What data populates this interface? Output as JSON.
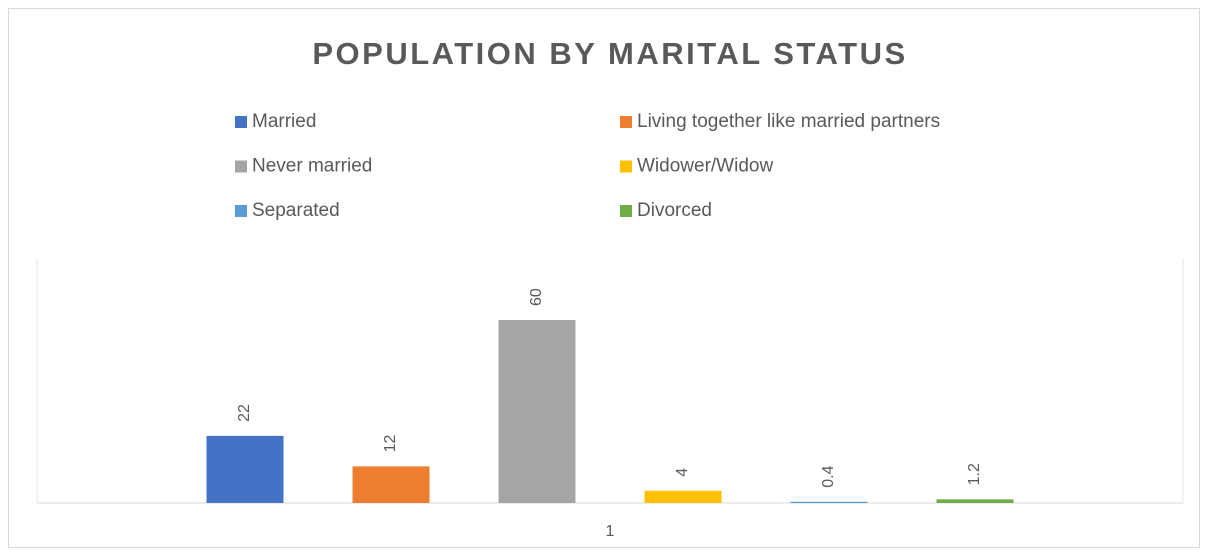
{
  "chart_data": {
    "type": "bar",
    "title": "POPULATION BY MARITAL STATUS",
    "categories": [
      "1"
    ],
    "series": [
      {
        "name": "Married",
        "color": "#4472c4",
        "values": [
          22
        ]
      },
      {
        "name": "Living together like married partners",
        "color": "#ed7d31",
        "values": [
          12
        ]
      },
      {
        "name": "Never married",
        "color": "#a5a5a5",
        "values": [
          60
        ]
      },
      {
        "name": "Widower/Widow",
        "color": "#ffc000",
        "values": [
          4
        ]
      },
      {
        "name": "Separated",
        "color": "#5b9bd5",
        "values": [
          0.4
        ]
      },
      {
        "name": "Divorced",
        "color": "#70ad47",
        "values": [
          1.2
        ]
      }
    ],
    "ylim": [
      0,
      80
    ],
    "legend": "top"
  }
}
